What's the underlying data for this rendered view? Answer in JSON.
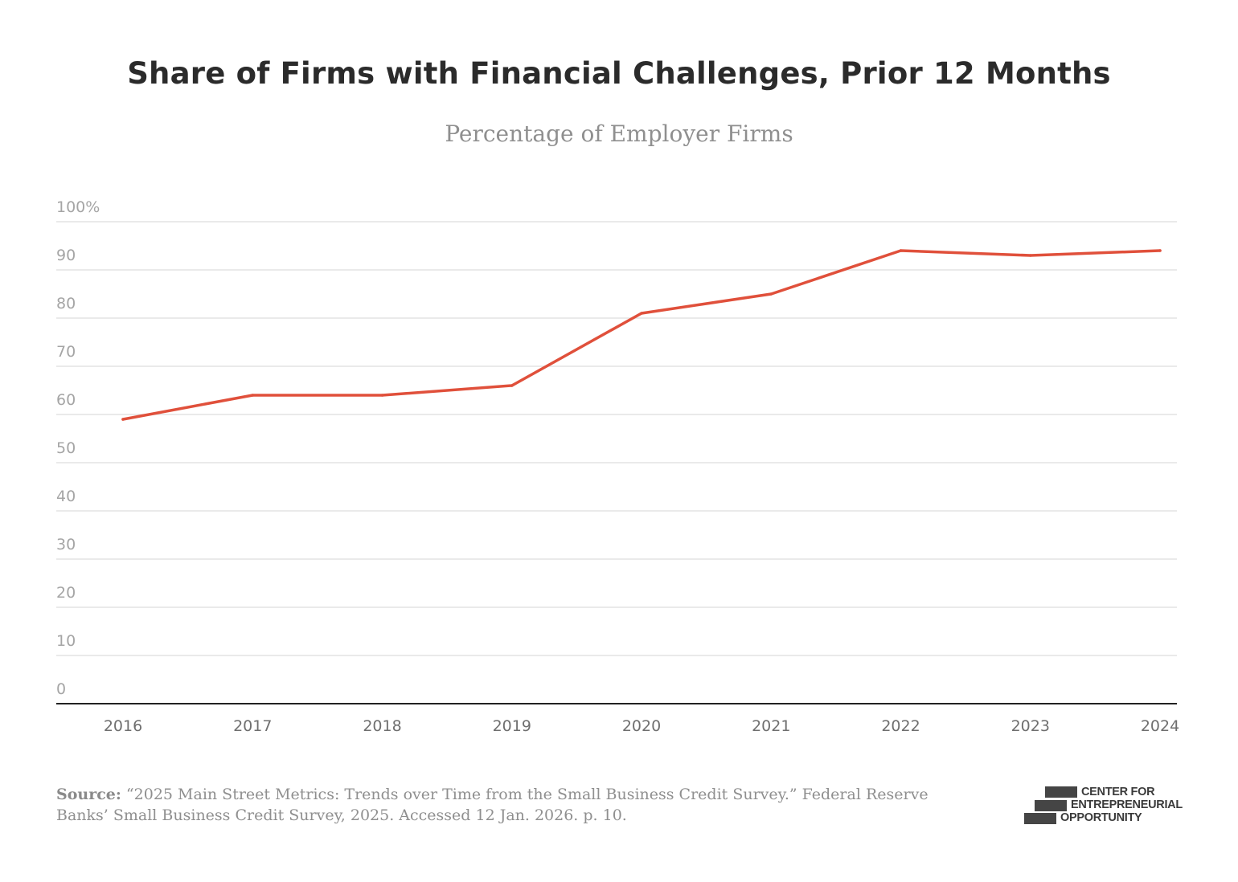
{
  "header": {
    "title": "Share of Firms with Financial Challenges, Prior 12 Months",
    "subtitle": "Percentage of Employer Firms"
  },
  "chart_data": {
    "type": "line",
    "title": "Share of Firms with Financial Challenges, Prior 12 Months",
    "subtitle": "Percentage of Employer Firms",
    "xlabel": "",
    "ylabel": "",
    "x": [
      "2016",
      "2017",
      "2018",
      "2019",
      "2020",
      "2021",
      "2022",
      "2023",
      "2024"
    ],
    "series": [
      {
        "name": "Share of firms with financial challenges",
        "values": [
          59,
          64,
          64,
          66,
          81,
          85,
          94,
          93,
          94
        ],
        "color": "#e0503b"
      }
    ],
    "ylim": [
      0,
      100
    ],
    "yticks": [
      0,
      10,
      20,
      30,
      40,
      50,
      60,
      70,
      80,
      90,
      100
    ],
    "ytick_labels": [
      "0",
      "10",
      "20",
      "30",
      "40",
      "50",
      "60",
      "70",
      "80",
      "90",
      "100%"
    ],
    "grid": true,
    "legend": "none"
  },
  "footer": {
    "source_label": "Source:",
    "source_text": " “2025 Main Street Metrics: Trends over Time from the Small Business Credit Survey.” Federal Reserve Banks’ Small Business Credit Survey, 2025. Accessed 12 Jan. 2026. p. 10.",
    "logo_lines": [
      "CENTER FOR",
      "ENTREPRENEURIAL",
      "OPPORTUNITY"
    ]
  }
}
